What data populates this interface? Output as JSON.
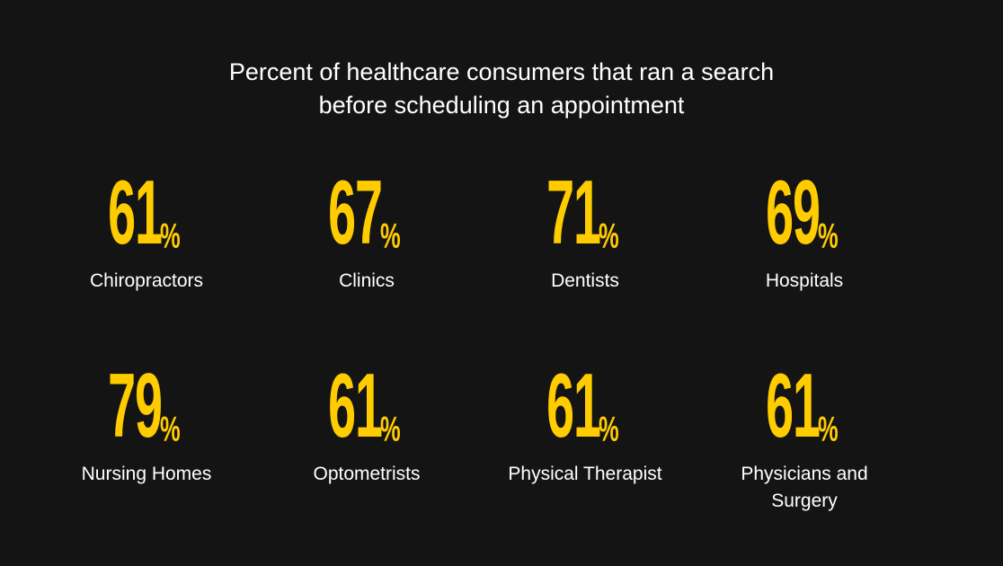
{
  "title_lines": [
    "Percent of healthcare consumers that ran a search",
    "before scheduling an appointment"
  ],
  "colors": {
    "background": "#141414",
    "value": "#FFCC00",
    "text": "#FFFFFF"
  },
  "chart_data": {
    "type": "table",
    "title": "Percent of healthcare consumers that ran a search before scheduling an appointment",
    "unit": "%",
    "categories": [
      "Chiropractors",
      "Clinics",
      "Dentists",
      "Hospitals",
      "Nursing Homes",
      "Optometrists",
      "Physical Therapist",
      "Physicians and Surgery"
    ],
    "values": [
      61,
      67,
      71,
      69,
      79,
      61,
      61,
      61
    ]
  },
  "stats": [
    {
      "value": "61",
      "unit": "%",
      "label": "Chiropractors"
    },
    {
      "value": "67",
      "unit": "%",
      "label": "Clinics"
    },
    {
      "value": "71",
      "unit": "%",
      "label": "Dentists"
    },
    {
      "value": "69",
      "unit": "%",
      "label": "Hospitals"
    },
    {
      "value": "79",
      "unit": "%",
      "label": "Nursing Homes"
    },
    {
      "value": "61",
      "unit": "%",
      "label": "Optometrists"
    },
    {
      "value": "61",
      "unit": "%",
      "label": "Physical Therapist"
    },
    {
      "value": "61",
      "unit": "%",
      "label": "Physicians and Surgery"
    }
  ]
}
